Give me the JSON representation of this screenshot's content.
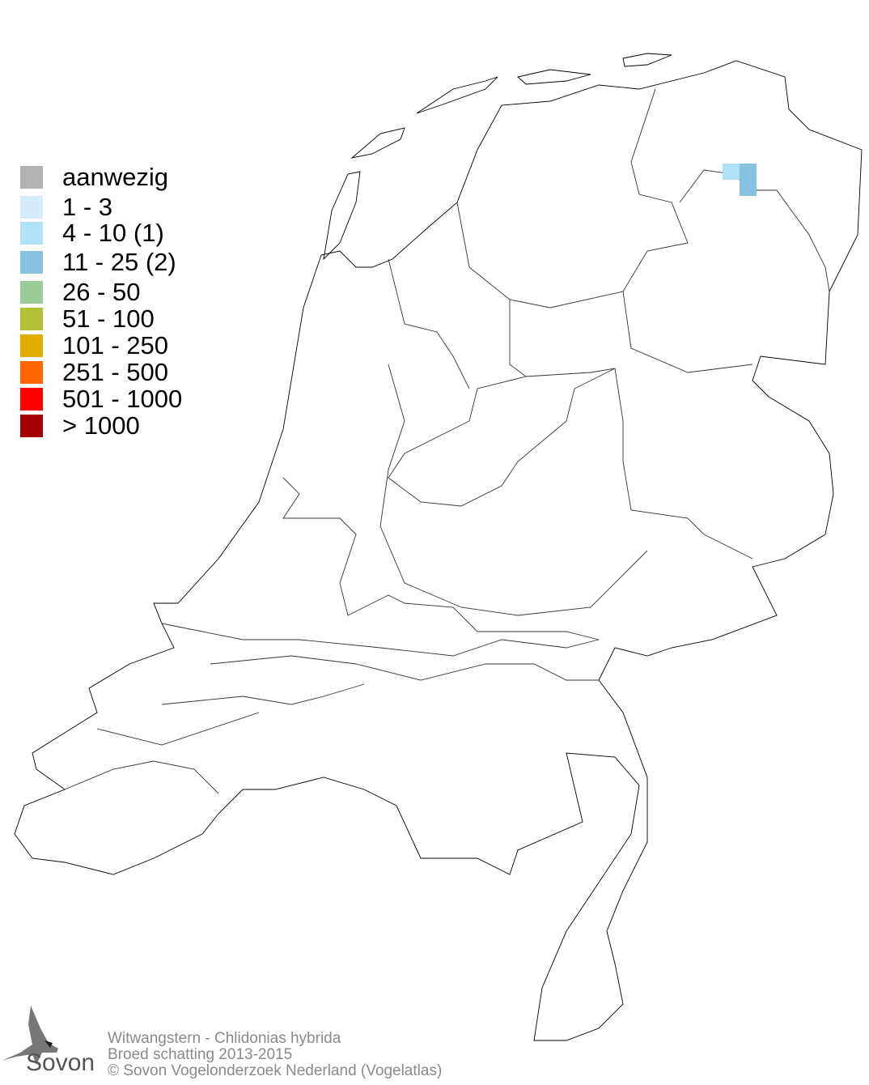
{
  "legend": {
    "items": [
      {
        "label": "aanwezig",
        "color": "#b3b3b3"
      },
      {
        "label": "1 - 3",
        "color": "#d6ecfa"
      },
      {
        "label": "4 - 10 (1)",
        "color": "#b0e2f8"
      },
      {
        "label": "11 - 25 (2)",
        "color": "#87c3e0"
      },
      {
        "label": "26 - 50",
        "color": "#99cc99"
      },
      {
        "label": "51 - 100",
        "color": "#b2c234"
      },
      {
        "label": "101 - 250",
        "color": "#e2ad00"
      },
      {
        "label": "251 - 500",
        "color": "#ff6600"
      },
      {
        "label": "501 - 1000",
        "color": "#ff0000"
      },
      {
        "label": "> 1000",
        "color": "#a50000"
      }
    ]
  },
  "grid_cells": [
    {
      "class": "4 - 10",
      "color": "#b0e2f8"
    },
    {
      "class": "11 - 25",
      "color": "#87c3e0"
    },
    {
      "class": "11 - 25",
      "color": "#87c3e0"
    }
  ],
  "footer": {
    "species": "Witwangstern - Chlidonias hybrida",
    "subtitle": "Broed schatting 2013-2015",
    "copyright": "© Sovon Vogelonderzoek Nederland (Vogelatlas)"
  },
  "logo": {
    "text": "Sovon",
    "icon": "swallow-logo-icon"
  }
}
